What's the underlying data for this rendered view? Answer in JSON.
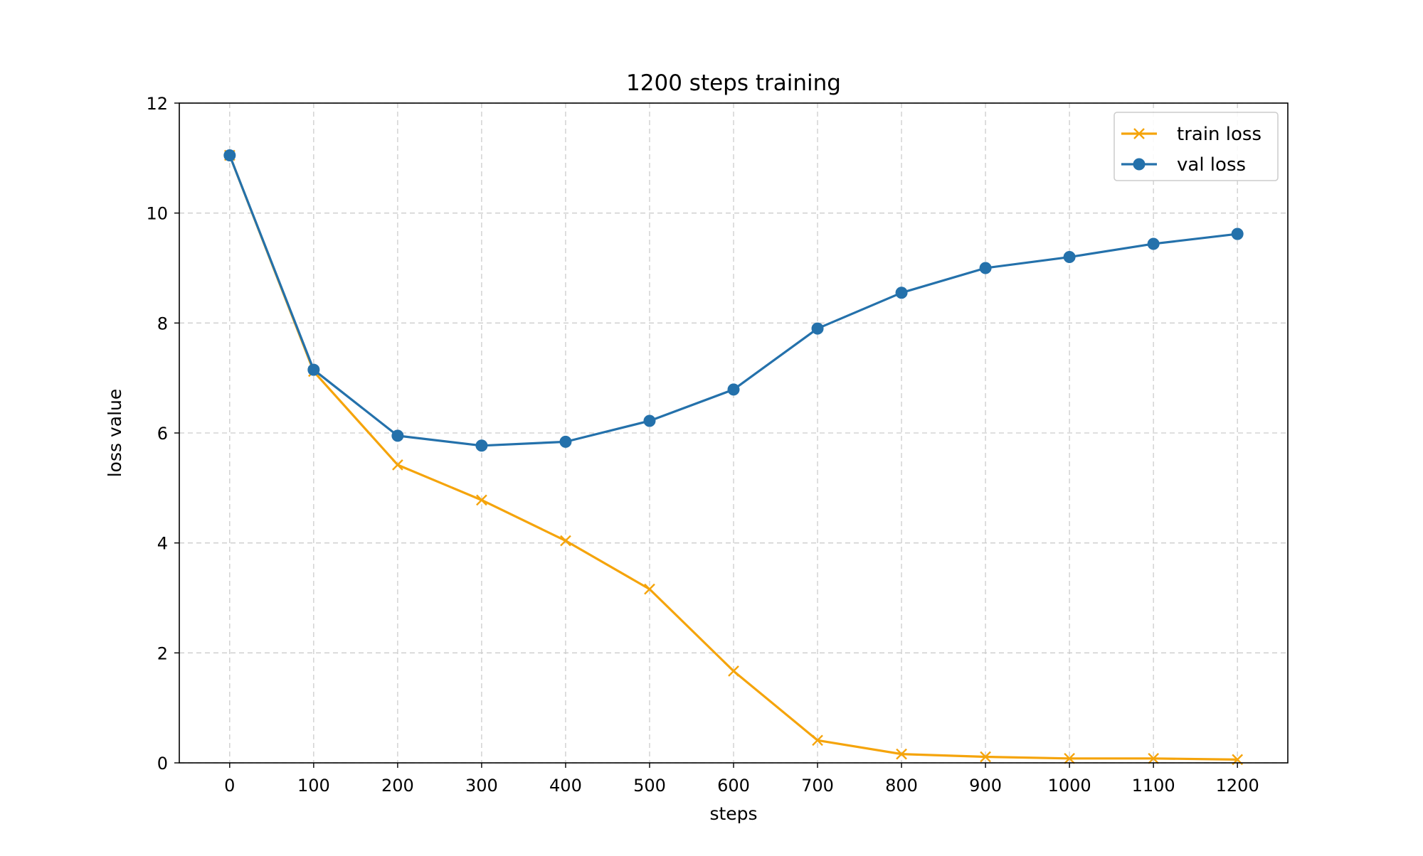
{
  "chart_data": {
    "type": "line",
    "title": "1200 steps training",
    "xlabel": "steps",
    "ylabel": "loss value",
    "x": [
      0,
      100,
      200,
      300,
      400,
      500,
      600,
      700,
      800,
      900,
      1000,
      1100,
      1200
    ],
    "xlim": [
      -60,
      1260
    ],
    "ylim": [
      0,
      12
    ],
    "x_ticks": [
      "0",
      "100",
      "200",
      "300",
      "400",
      "500",
      "600",
      "700",
      "800",
      "900",
      "1000",
      "1100",
      "1200"
    ],
    "y_ticks": [
      "0",
      "2",
      "4",
      "6",
      "8",
      "10",
      "12"
    ],
    "grid": true,
    "legend_position": "top-right",
    "series": [
      {
        "name": "train loss",
        "color": "#f5a40b",
        "marker": "x",
        "values": [
          11.05,
          7.12,
          5.42,
          4.78,
          4.04,
          3.16,
          1.67,
          0.41,
          0.16,
          0.11,
          0.08,
          0.08,
          0.06
        ]
      },
      {
        "name": "val loss",
        "color": "#2471ab",
        "marker": "circle",
        "values": [
          11.05,
          7.15,
          5.95,
          5.77,
          5.84,
          6.22,
          6.79,
          7.9,
          8.55,
          9.0,
          9.2,
          9.44,
          9.62
        ]
      }
    ]
  }
}
